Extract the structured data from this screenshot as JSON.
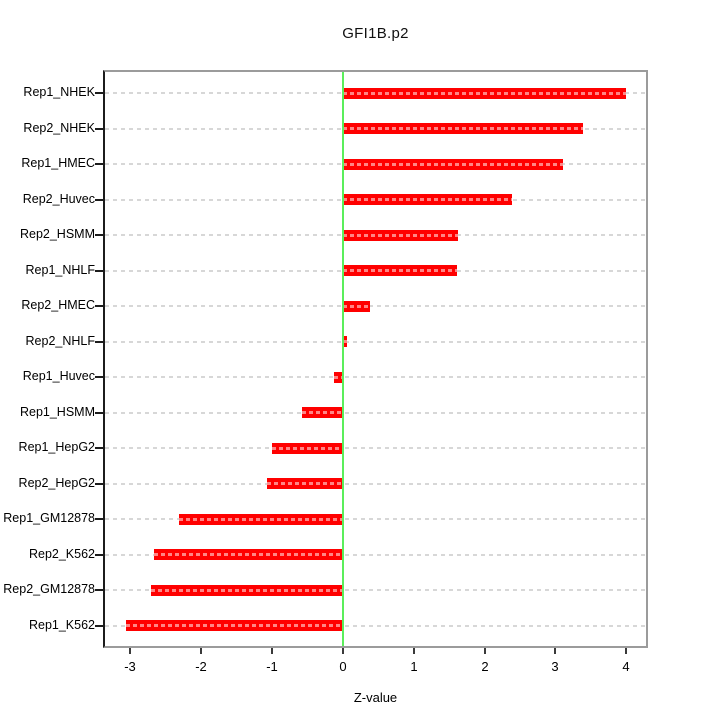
{
  "chart_data": {
    "type": "bar",
    "orientation": "horizontal",
    "title": "GFI1B.p2",
    "xlabel": "Z-value",
    "categories": [
      "Rep1_NHEK",
      "Rep2_NHEK",
      "Rep1_HMEC",
      "Rep2_Huvec",
      "Rep2_HSMM",
      "Rep1_NHLF",
      "Rep2_HMEC",
      "Rep2_NHLF",
      "Rep1_Huvec",
      "Rep1_HSMM",
      "Rep1_HepG2",
      "Rep2_HepG2",
      "Rep1_GM12878",
      "Rep2_K562",
      "Rep2_GM12878",
      "Rep1_K562"
    ],
    "values": [
      4.0,
      3.39,
      3.1,
      2.38,
      1.63,
      1.61,
      0.38,
      0.06,
      -0.13,
      -0.58,
      -1.0,
      -1.07,
      -2.31,
      -2.67,
      -2.71,
      -3.07
    ],
    "xticks": [
      -3,
      -2,
      -1,
      0,
      1,
      2,
      3,
      4
    ],
    "xlim": [
      -3.36,
      4.28
    ],
    "zero_line_x": 0,
    "grid": "dashed horizontal line per category",
    "legend": "none",
    "colors": {
      "bar": "#ff0000",
      "bar_stripe": "#ff8585",
      "zero_line": "#5bee5b",
      "grid_line": "#d7d7d7",
      "frame": "#9b9b9b",
      "axis": "#1c1c1c",
      "text": "#000000",
      "background": "#ffffff"
    }
  }
}
